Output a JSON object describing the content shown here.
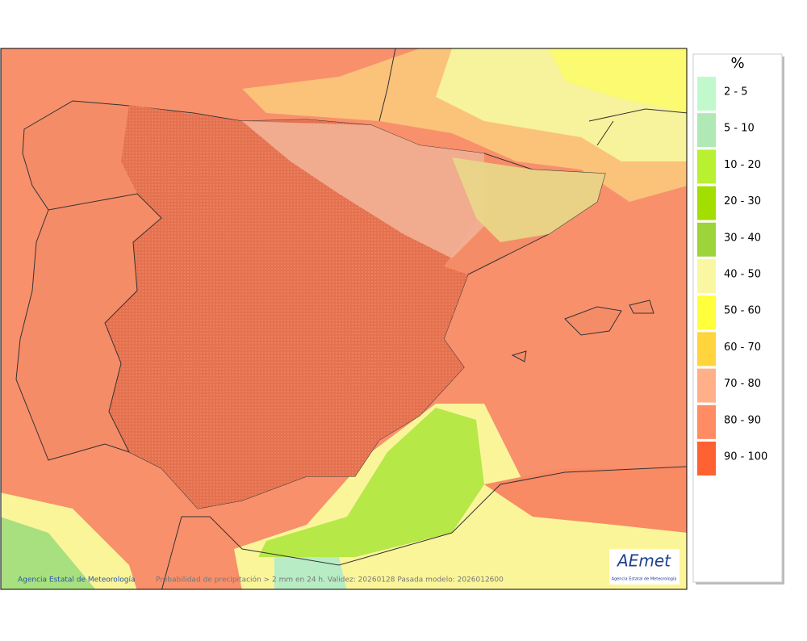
{
  "legend": {
    "title": "%",
    "items": [
      {
        "label": "2 - 5",
        "color": "#c2f9cc"
      },
      {
        "label": "5 - 10",
        "color": "#b0e8b6"
      },
      {
        "label": "10 - 20",
        "color": "#b8f032"
      },
      {
        "label": "20 - 30",
        "color": "#a2df00"
      },
      {
        "label": "30 - 40",
        "color": "#9cd43a"
      },
      {
        "label": "40 - 50",
        "color": "#faf7a2"
      },
      {
        "label": "50 - 60",
        "color": "#ffff3c"
      },
      {
        "label": "60 - 70",
        "color": "#ffd43c"
      },
      {
        "label": "70 - 80",
        "color": "#ffb088"
      },
      {
        "label": "80 - 90",
        "color": "#ff8c62"
      },
      {
        "label": "90 - 100",
        "color": "#ff6232"
      }
    ]
  },
  "footer": {
    "credit": "Agencia Estatal de Meteorología",
    "caption": "Probabilidad de precipitación > 2 mm en 24 h. Validez: 20260128 Pasada modelo: 2026012600"
  },
  "logo": {
    "name": "AEmet",
    "subtitle": "Agencia Estatal de Meteorología"
  }
}
